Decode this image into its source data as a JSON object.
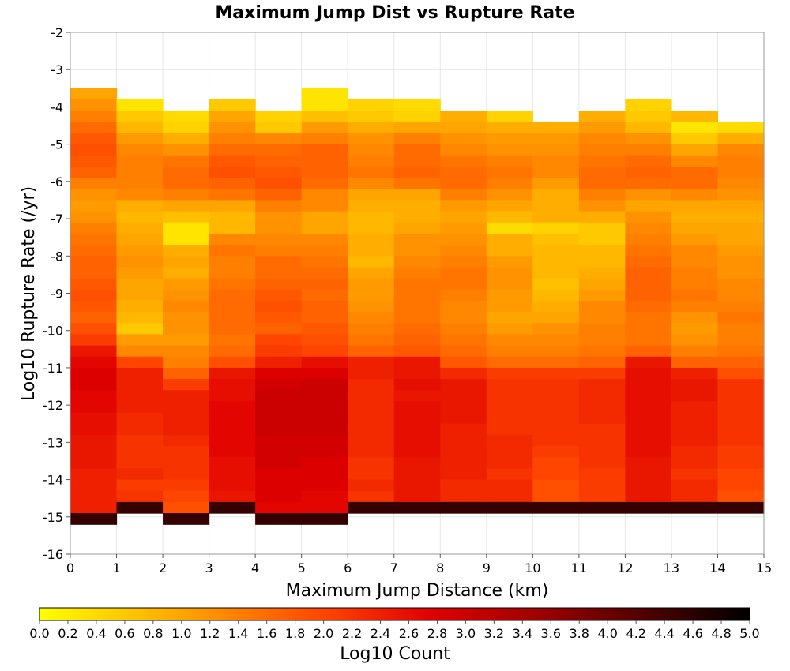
{
  "chart_data": {
    "type": "heatmap",
    "title": "Maximum Jump Dist vs Rupture Rate",
    "xlabel": "Maximum Jump Distance (km)",
    "ylabel": "Log10 Rupture Rate (/yr)",
    "colorbar_label": "Log10 Count",
    "xlim": [
      0,
      15
    ],
    "ylim": [
      -16,
      -2
    ],
    "x_ticks": [
      "0",
      "1",
      "2",
      "3",
      "4",
      "5",
      "6",
      "7",
      "8",
      "9",
      "10",
      "11",
      "12",
      "13",
      "14",
      "15"
    ],
    "y_ticks": [
      "-2",
      "-3",
      "-4",
      "-5",
      "-6",
      "-7",
      "-8",
      "-9",
      "-10",
      "-11",
      "-12",
      "-13",
      "-14",
      "-15",
      "-16"
    ],
    "colorbar_range": [
      0,
      5
    ],
    "colorbar_ticks": [
      "0.0",
      "0.2",
      "0.4",
      "0.6",
      "0.8",
      "1.0",
      "1.2",
      "1.4",
      "1.6",
      "1.8",
      "2.0",
      "2.2",
      "2.4",
      "2.6",
      "2.8",
      "3.0",
      "3.2",
      "3.4",
      "3.6",
      "3.8",
      "4.0",
      "4.2",
      "4.4",
      "4.6",
      "4.8",
      "5.0"
    ],
    "colorscale": [
      "#ffff00",
      "#ffa500",
      "#ff4500",
      "#e00000",
      "#a00000",
      "#000000"
    ],
    "x_bin_width": 1,
    "y_bin_height": 0.3,
    "columns": [
      {
        "x": 0.5,
        "top": -3.5,
        "values": [
          1.0,
          1.2,
          1.4,
          1.6,
          1.8,
          1.9,
          1.8,
          1.7,
          1.4,
          1.2,
          1.1,
          1.2,
          1.4,
          1.5,
          1.6,
          1.7,
          1.7,
          1.8,
          1.9,
          1.8,
          1.7,
          1.9,
          2.1,
          2.5,
          2.7,
          2.8,
          2.8,
          2.7,
          2.7,
          2.6,
          2.6,
          2.5,
          2.5,
          2.5,
          2.4,
          2.4,
          2.4,
          2.4,
          4.5
        ]
      },
      {
        "x": 1.5,
        "top": -3.8,
        "values": [
          0.3,
          0.6,
          0.8,
          1.1,
          1.3,
          1.4,
          1.4,
          1.4,
          1.3,
          0.9,
          0.8,
          0.9,
          1.0,
          1.1,
          1.2,
          1.1,
          1.0,
          1.0,
          0.9,
          0.8,
          0.6,
          1.1,
          1.3,
          2.0,
          2.4,
          2.4,
          2.4,
          2.4,
          2.3,
          2.3,
          2.2,
          2.2,
          2.2,
          2.3,
          2.1,
          2.2,
          4.5
        ]
      },
      {
        "x": 2.5,
        "top": -4.1,
        "values": [
          0.4,
          0.5,
          0.9,
          1.2,
          1.5,
          1.6,
          1.6,
          1.4,
          1.0,
          0.7,
          0.3,
          0.3,
          0.9,
          1.0,
          0.9,
          1.1,
          1.2,
          1.3,
          1.2,
          1.2,
          1.1,
          1.3,
          1.4,
          1.7,
          2.1,
          2.4,
          2.4,
          2.4,
          2.4,
          2.3,
          2.2,
          2.2,
          2.2,
          2.1,
          2.0,
          1.9,
          4.5
        ]
      },
      {
        "x": 3.5,
        "top": -3.8,
        "values": [
          0.6,
          1.0,
          1.2,
          1.4,
          1.6,
          1.8,
          1.9,
          1.7,
          1.5,
          1.0,
          0.8,
          0.8,
          1.3,
          1.5,
          1.4,
          1.4,
          1.5,
          1.6,
          1.6,
          1.6,
          1.6,
          1.5,
          1.6,
          1.9,
          2.5,
          2.6,
          2.6,
          2.7,
          2.7,
          2.7,
          2.7,
          2.7,
          2.6,
          2.6,
          2.6,
          2.5,
          4.5
        ]
      },
      {
        "x": 4.5,
        "top": -4.1,
        "values": [
          0.5,
          0.6,
          1.3,
          1.6,
          1.7,
          1.8,
          1.9,
          1.7,
          1.4,
          1.2,
          1.2,
          1.3,
          1.4,
          1.6,
          1.6,
          1.7,
          1.8,
          1.9,
          1.8,
          1.7,
          2.0,
          2.1,
          2.4,
          2.8,
          2.9,
          3.0,
          3.0,
          3.0,
          3.0,
          2.9,
          2.9,
          2.9,
          2.8,
          2.8,
          2.8,
          2.7,
          4.5
        ]
      },
      {
        "x": 5.5,
        "top": -3.5,
        "values": [
          0.3,
          0.3,
          0.7,
          1.1,
          1.4,
          1.7,
          1.7,
          1.7,
          1.6,
          1.3,
          1.3,
          1.0,
          1.0,
          1.3,
          1.4,
          1.5,
          1.6,
          1.7,
          1.6,
          1.7,
          1.7,
          1.8,
          1.9,
          2.0,
          2.6,
          2.8,
          3.0,
          3.0,
          3.0,
          3.0,
          3.0,
          2.9,
          2.9,
          2.8,
          2.8,
          2.8,
          2.7,
          2.7,
          4.5
        ]
      },
      {
        "x": 6.5,
        "top": -3.8,
        "values": [
          0.5,
          0.6,
          0.9,
          1.2,
          1.3,
          1.4,
          1.5,
          1.3,
          1.0,
          0.9,
          0.8,
          0.8,
          0.9,
          0.9,
          0.8,
          1.0,
          1.1,
          1.1,
          1.2,
          1.3,
          1.4,
          1.5,
          1.7,
          2.4,
          2.4,
          2.3,
          2.3,
          2.3,
          2.3,
          2.3,
          2.3,
          2.3,
          2.2,
          2.2,
          2.3,
          2.2,
          4.5
        ]
      },
      {
        "x": 7.5,
        "top": -3.8,
        "values": [
          0.4,
          0.5,
          1.0,
          1.4,
          1.6,
          1.6,
          1.7,
          1.5,
          1.0,
          0.9,
          0.9,
          1.0,
          1.2,
          1.2,
          1.3,
          1.4,
          1.5,
          1.5,
          1.5,
          1.5,
          1.6,
          1.7,
          1.8,
          2.5,
          2.5,
          2.6,
          2.5,
          2.6,
          2.6,
          2.6,
          2.6,
          2.6,
          2.5,
          2.5,
          2.5,
          2.5,
          4.5
        ]
      },
      {
        "x": 8.5,
        "top": -4.1,
        "values": [
          0.9,
          1.0,
          1.2,
          1.3,
          1.5,
          1.6,
          1.6,
          1.4,
          1.1,
          1.0,
          1.1,
          1.2,
          1.3,
          1.4,
          1.5,
          1.5,
          1.4,
          1.3,
          1.3,
          1.4,
          1.5,
          1.6,
          1.8,
          2.3,
          2.5,
          2.5,
          2.5,
          2.5,
          2.4,
          2.4,
          2.4,
          2.4,
          2.4,
          2.3,
          2.3,
          4.5
        ]
      },
      {
        "x": 9.5,
        "top": -4.1,
        "values": [
          0.5,
          0.9,
          1.1,
          1.2,
          1.4,
          1.5,
          1.4,
          1.2,
          1.0,
          0.8,
          0.4,
          0.9,
          0.9,
          1.1,
          1.2,
          1.2,
          1.1,
          1.1,
          1.0,
          1.1,
          1.3,
          1.4,
          1.6,
          2.1,
          2.2,
          2.2,
          2.2,
          2.2,
          2.2,
          2.3,
          2.3,
          2.3,
          2.2,
          2.3,
          2.3,
          4.5
        ]
      },
      {
        "x": 10.5,
        "top": -4.4,
        "values": [
          0.9,
          1.1,
          1.2,
          1.3,
          1.3,
          1.1,
          0.9,
          0.9,
          0.9,
          0.5,
          0.7,
          0.8,
          0.8,
          0.8,
          0.7,
          0.8,
          0.9,
          1.0,
          1.2,
          1.3,
          1.4,
          1.6,
          2.1,
          2.2,
          2.2,
          2.2,
          2.2,
          2.2,
          2.2,
          2.1,
          2.0,
          2.0,
          1.9,
          1.9,
          4.5
        ]
      },
      {
        "x": 11.5,
        "top": -4.1,
        "values": [
          0.9,
          1.1,
          1.3,
          1.4,
          1.5,
          1.6,
          1.6,
          1.4,
          1.2,
          0.9,
          0.6,
          0.6,
          0.8,
          0.8,
          0.9,
          1.0,
          1.1,
          1.3,
          1.3,
          1.4,
          1.4,
          1.5,
          1.7,
          2.1,
          2.3,
          2.3,
          2.3,
          2.3,
          2.2,
          2.2,
          2.2,
          2.2,
          2.1,
          2.1,
          2.1,
          4.5
        ]
      },
      {
        "x": 12.5,
        "top": -3.8,
        "values": [
          0.5,
          0.6,
          0.8,
          1.2,
          1.4,
          1.6,
          1.7,
          1.6,
          1.2,
          1.0,
          1.2,
          1.3,
          1.4,
          1.5,
          1.6,
          1.7,
          1.7,
          1.7,
          1.6,
          1.5,
          1.5,
          1.5,
          1.7,
          2.5,
          2.6,
          2.6,
          2.6,
          2.6,
          2.6,
          2.6,
          2.6,
          2.6,
          2.5,
          2.5,
          2.5,
          2.5,
          4.5
        ]
      },
      {
        "x": 13.5,
        "top": -4.1,
        "values": [
          0.8,
          0.3,
          0.6,
          1.0,
          1.3,
          1.6,
          1.6,
          1.3,
          1.0,
          0.9,
          1.0,
          1.1,
          1.3,
          1.3,
          1.4,
          1.4,
          1.5,
          1.4,
          1.2,
          1.1,
          1.2,
          1.4,
          1.7,
          2.4,
          2.5,
          2.5,
          2.4,
          2.4,
          2.4,
          2.4,
          2.3,
          2.3,
          2.2,
          2.3,
          2.3,
          4.5
        ]
      },
      {
        "x": 14.5,
        "top": -4.4,
        "values": [
          0.4,
          0.9,
          1.3,
          1.4,
          1.4,
          1.3,
          1.2,
          1.0,
          0.9,
          1.0,
          1.0,
          1.1,
          1.2,
          1.2,
          1.3,
          1.3,
          1.4,
          1.5,
          1.4,
          1.4,
          1.5,
          1.7,
          1.9,
          2.2,
          2.2,
          2.2,
          2.2,
          2.2,
          2.2,
          2.1,
          2.1,
          2.0,
          2.0,
          1.9,
          4.5
        ]
      }
    ]
  }
}
